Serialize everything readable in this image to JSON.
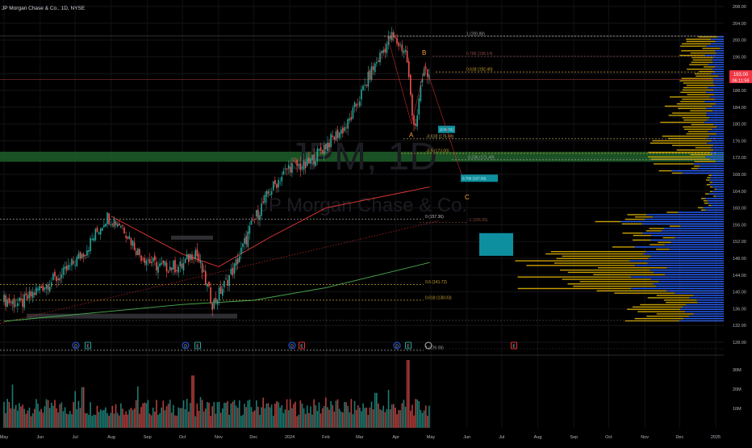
{
  "header": {
    "symbol_title": "JP Morgan Chase & Co., 1D, NYSE"
  },
  "watermark": {
    "ticker": "JPM, 1D",
    "name": "JP Morgan Chase & Co."
  },
  "last_price": {
    "value": "193.00",
    "timer": "06:11:59",
    "color": "#f23645"
  },
  "colors": {
    "up": "#26a69a",
    "down": "#ef5350",
    "profile_gold": "#c8a000",
    "profile_blue": "#2962ff",
    "ema_red": "#e53935",
    "sma_green": "#4caf50",
    "target_box": "#0e8f9f",
    "support_zone": "#1f5f2a"
  },
  "price_axis": {
    "min": 128,
    "max": 208,
    "ticks": [
      "208.00",
      "204.00",
      "200.00",
      "196.00",
      "192.00",
      "188.00",
      "184.00",
      "180.00",
      "176.00",
      "172.00",
      "168.00",
      "164.00",
      "160.00",
      "156.00",
      "152.00",
      "148.00",
      "144.00",
      "140.00",
      "136.00",
      "132.00",
      "128.00"
    ]
  },
  "volume_axis": {
    "max": 35,
    "ticks": [
      "30M",
      "20M",
      "10M"
    ]
  },
  "time_axis": {
    "labels": [
      "May",
      "Jun",
      "Jul",
      "Aug",
      "Sep",
      "Oct",
      "Nov",
      "Dec",
      "2024",
      "Feb",
      "Mar",
      "Apr",
      "May",
      "Jun",
      "Jul",
      "Aug",
      "Sep",
      "Oct",
      "Nov",
      "Dec",
      "2025"
    ]
  },
  "fib_upper": [
    {
      "label": "1 (200.88)",
      "price": 200.88,
      "color": "#9e9e9e"
    },
    {
      "label": "0.786 (196.14)",
      "price": 196.14,
      "color": "#8d4a45"
    },
    {
      "label": "0.618 (192.40)",
      "price": 192.4,
      "color": "#c8a030"
    },
    {
      "label": "-0.618 (176.49)",
      "price": 176.49,
      "color": "#b0a060"
    },
    {
      "label": "-0.5 (173.00)",
      "price": 173.0,
      "color": "#c8a030"
    },
    {
      "label": "0.236 (171.49)",
      "price": 171.49,
      "color": "#9e9e9e"
    }
  ],
  "fib_lower": [
    {
      "label": "0 (157.36)",
      "price": 157.36,
      "color": "#bdbdbd"
    },
    {
      "label": "-1 (156.55)",
      "price": 156.55,
      "color": "#8d4a45"
    },
    {
      "label": "0.5 (141.72)",
      "price": 141.72,
      "color": "#c8a030"
    },
    {
      "label": "0.618 (138.03)",
      "price": 138.03,
      "color": "#c8a030"
    },
    {
      "label": "1 (126.08)",
      "price": 126.08,
      "color": "#9e9e9e"
    }
  ],
  "targets": [
    {
      "label": "(178.72)",
      "price": 178.72
    },
    {
      "label": "0.786 (167.08)",
      "price": 167.08
    }
  ],
  "wave_labels": {
    "a": "A",
    "b": "B",
    "c": "C"
  },
  "event_markers": [
    "D",
    "E",
    "D",
    "E",
    "D",
    "E",
    "D",
    "E",
    "E"
  ],
  "chart_data": {
    "type": "candlestick",
    "title": "JP Morgan Chase & Co., 1D, NYSE",
    "price_range": [
      128,
      208
    ],
    "anchors": [
      {
        "date": "2023-05-01",
        "close": 138
      },
      {
        "date": "2023-05-15",
        "close": 137
      },
      {
        "date": "2023-06-01",
        "close": 141
      },
      {
        "date": "2023-06-20",
        "close": 144
      },
      {
        "date": "2023-07-10",
        "close": 150
      },
      {
        "date": "2023-07-28",
        "close": 158
      },
      {
        "date": "2023-08-10",
        "close": 156
      },
      {
        "date": "2023-08-25",
        "close": 149
      },
      {
        "date": "2023-09-10",
        "close": 146
      },
      {
        "date": "2023-09-30",
        "close": 146
      },
      {
        "date": "2023-10-12",
        "close": 150
      },
      {
        "date": "2023-10-27",
        "close": 137
      },
      {
        "date": "2023-11-15",
        "close": 146
      },
      {
        "date": "2023-12-01",
        "close": 157
      },
      {
        "date": "2023-12-15",
        "close": 164
      },
      {
        "date": "2024-01-01",
        "close": 170
      },
      {
        "date": "2024-01-15",
        "close": 170
      },
      {
        "date": "2024-02-01",
        "close": 175
      },
      {
        "date": "2024-02-20",
        "close": 180
      },
      {
        "date": "2024-03-10",
        "close": 192
      },
      {
        "date": "2024-03-28",
        "close": 201
      },
      {
        "date": "2024-04-10",
        "close": 197
      },
      {
        "date": "2024-04-15",
        "close": 182
      },
      {
        "date": "2024-04-18",
        "close": 180
      },
      {
        "date": "2024-04-25",
        "close": 193
      },
      {
        "date": "2024-04-30",
        "close": 191
      }
    ],
    "series": [
      {
        "name": "EMA",
        "points": [
          [
            "2023-08-01",
            158
          ],
          [
            "2023-10-01",
            149
          ],
          [
            "2023-11-01",
            146
          ],
          [
            "2023-12-15",
            153
          ],
          [
            "2024-02-01",
            160
          ],
          [
            "2024-04-30",
            165
          ]
        ]
      },
      {
        "name": "SMA",
        "points": [
          [
            "2023-05-01",
            133
          ],
          [
            "2023-10-01",
            137
          ],
          [
            "2023-12-01",
            138
          ],
          [
            "2024-02-01",
            141
          ],
          [
            "2024-04-30",
            147
          ]
        ]
      }
    ]
  }
}
